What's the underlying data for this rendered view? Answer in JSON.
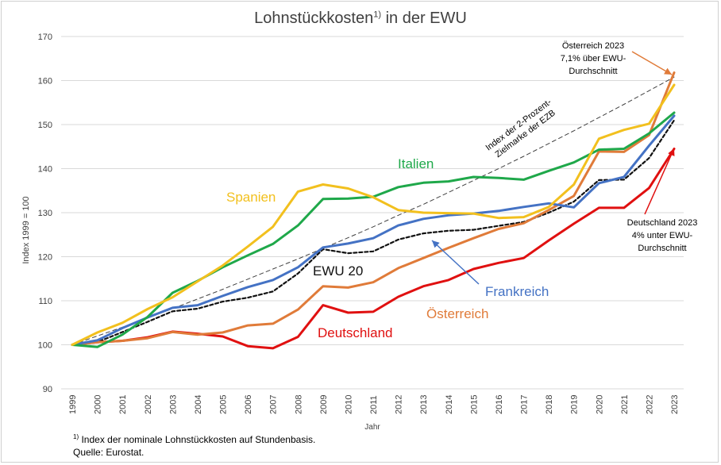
{
  "title_main": "Lohnstückkosten",
  "title_sup": "1)",
  "title_rest": " in der EWU",
  "footnote_sup": "1)",
  "footnote_text": " Index der nominale Lohnstückkosten auf Stundenbasis.",
  "source": "Quelle: Eurostat.",
  "chart_data": {
    "type": "line",
    "x": [
      1999,
      2000,
      2001,
      2002,
      2003,
      2004,
      2005,
      2006,
      2007,
      2008,
      2009,
      2010,
      2011,
      2012,
      2013,
      2014,
      2015,
      2016,
      2017,
      2018,
      2019,
      2020,
      2021,
      2022,
      2023
    ],
    "xlabel": "Jahr",
    "ylabel": "Index 1999 = 100",
    "ylim": [
      90,
      170
    ],
    "yticks": [
      90,
      100,
      110,
      120,
      130,
      140,
      150,
      160,
      170
    ],
    "grid": "horizontal",
    "series": [
      {
        "name": "Spanien",
        "color": "#F2C01E",
        "style": "solid",
        "values": [
          100,
          102.8,
          105,
          108.1,
          110.8,
          114.4,
          118,
          122.3,
          126.8,
          134.8,
          136.4,
          135.5,
          133.5,
          130.6,
          130,
          129.9,
          129.8,
          128.8,
          129,
          131.3,
          136.4,
          146.8,
          148.8,
          150.2,
          159
        ]
      },
      {
        "name": "Italien",
        "color": "#1FA84A",
        "style": "solid",
        "values": [
          100,
          99.5,
          102.3,
          106.3,
          111.8,
          114.5,
          117.6,
          120.3,
          122.9,
          127.1,
          133.1,
          133.2,
          133.6,
          135.8,
          136.8,
          137.1,
          138.1,
          137.9,
          137.5,
          139.5,
          141.4,
          144.3,
          144.5,
          148,
          152.7
        ]
      },
      {
        "name": "Frankreich",
        "color": "#4472C4",
        "style": "solid",
        "values": [
          100,
          101,
          103.8,
          106.2,
          108.4,
          109,
          111.1,
          113.1,
          114.7,
          117.6,
          122.1,
          123,
          124.2,
          127.1,
          128.6,
          129.4,
          129.8,
          130.4,
          131.3,
          132.1,
          131.2,
          136.7,
          138.1,
          145.2,
          152
        ]
      },
      {
        "name": "EWU 20",
        "color": "#111111",
        "style": "dashed",
        "values": [
          100,
          100.6,
          102.9,
          105.2,
          107.6,
          108.2,
          109.8,
          110.7,
          112.1,
          116.2,
          121.7,
          120.8,
          121.2,
          123.9,
          125.3,
          125.9,
          126.1,
          127,
          127.9,
          130,
          132.5,
          137.4,
          137.5,
          142.4,
          151
        ]
      },
      {
        "name": "Österreich",
        "color": "#E07B39",
        "style": "solid",
        "values": [
          100,
          100.6,
          100.9,
          101.5,
          102.9,
          102.3,
          102.8,
          104.4,
          104.8,
          108,
          113.3,
          113,
          114.2,
          117.4,
          119.7,
          122,
          124.2,
          126.3,
          127.6,
          130.6,
          133.8,
          143.9,
          143.8,
          147.6,
          161.8
        ]
      },
      {
        "name": "Deutschland",
        "color": "#E01010",
        "style": "solid",
        "values": [
          100,
          100.6,
          100.9,
          101.7,
          103,
          102.5,
          101.9,
          99.7,
          99.2,
          101.8,
          109,
          107.3,
          107.5,
          110.9,
          113.3,
          114.7,
          117.2,
          118.6,
          119.7,
          123.7,
          127.5,
          131.1,
          131.1,
          135.6,
          144.5
        ]
      },
      {
        "name": "Index der 2-Prozent-Zielmarke der EZB",
        "color": "#404040",
        "style": "thin-dashed",
        "values": [
          100,
          102,
          104,
          106.1,
          108.2,
          110.4,
          112.6,
          114.9,
          117.2,
          119.5,
          121.9,
          124.3,
          126.8,
          129.4,
          131.9,
          134.6,
          137.3,
          140,
          142.8,
          145.7,
          148.6,
          151.6,
          154.6,
          157.7,
          160.8
        ]
      }
    ],
    "labels": {
      "spanien": "Spanien",
      "italien": "Italien",
      "ewu": "EWU 20",
      "frankreich": "Frankreich",
      "oesterreich": "Österreich",
      "deutschland": "Deutschland",
      "target_line1": "Index der 2-Prozent-",
      "target_line2": "Zielmarke der EZB"
    },
    "annotations": {
      "at_line1": "Österreich 2023",
      "at_line2": "7,1% über EWU-",
      "at_line3": "Durchschnitt",
      "de_line1": "Deutschland 2023",
      "de_line2": "4% unter EWU-",
      "de_line3": "Durchschnitt"
    }
  }
}
